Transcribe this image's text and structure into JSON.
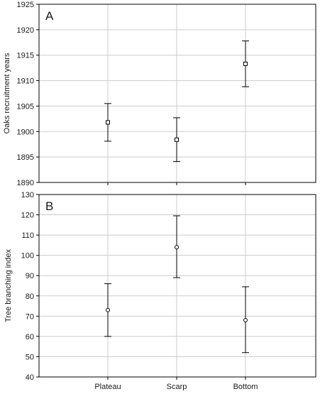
{
  "chart_data": [
    {
      "type": "scatter",
      "panel_label": "A",
      "categories": [
        "Plateau",
        "Scarp",
        "Bottom"
      ],
      "ylabel": "Oaks recruitment years",
      "ylim": [
        1890,
        1925
      ],
      "yticks": [
        1890,
        1895,
        1900,
        1905,
        1910,
        1915,
        1920,
        1925
      ],
      "grid": true,
      "marker": "square",
      "series": [
        {
          "means": [
            1901.8,
            1898.4,
            1913.3
          ],
          "lower": [
            1898.1,
            1894.1,
            1908.8
          ],
          "upper": [
            1905.5,
            1902.7,
            1917.8
          ]
        }
      ]
    },
    {
      "type": "scatter",
      "panel_label": "B",
      "categories": [
        "Plateau",
        "Scarp",
        "Bottom"
      ],
      "ylabel": "Tree branching index",
      "ylim": [
        40,
        130
      ],
      "yticks": [
        40,
        50,
        60,
        70,
        80,
        90,
        100,
        110,
        120,
        130
      ],
      "grid": true,
      "marker": "circle",
      "series": [
        {
          "means": [
            73,
            104,
            68
          ],
          "lower": [
            60,
            89,
            52
          ],
          "upper": [
            86,
            119.5,
            84.5
          ]
        }
      ]
    }
  ]
}
